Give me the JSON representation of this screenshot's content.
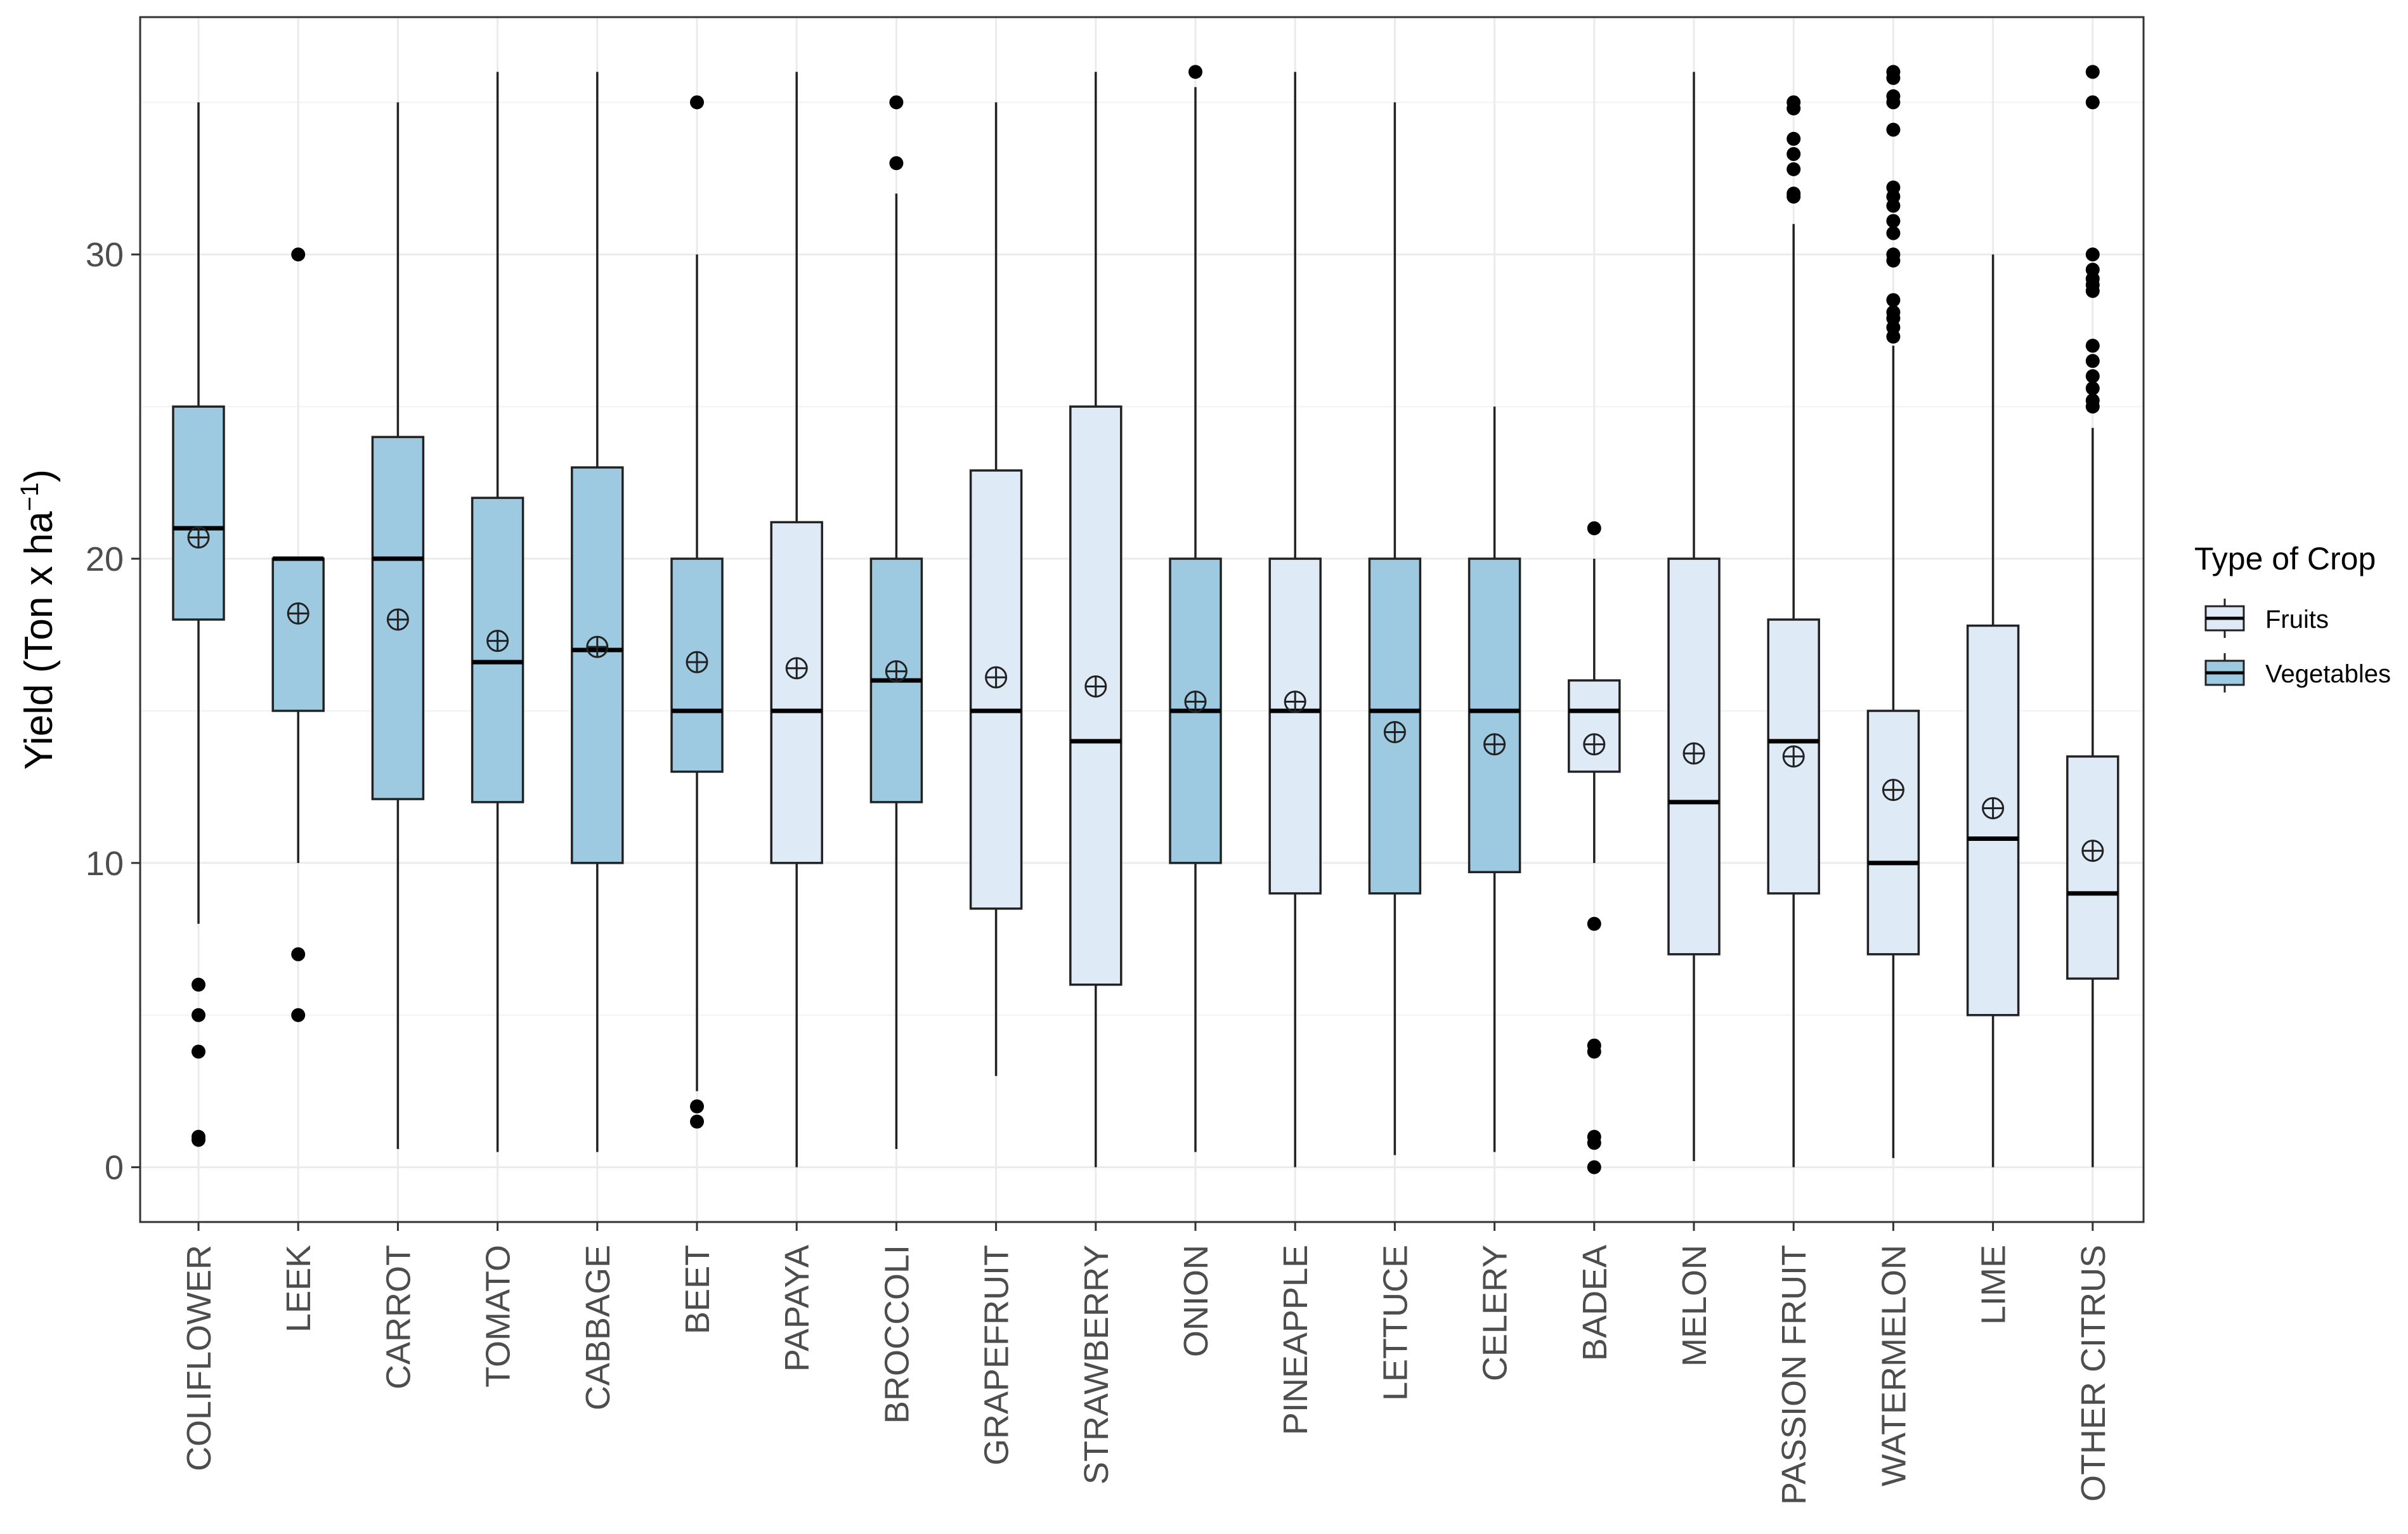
{
  "chart_data": {
    "type": "boxplot",
    "title": "",
    "xlabel": "",
    "ylabel_base": "Yield (Ton x ha",
    "ylabel_sup": "−1",
    "ylabel_close": ")",
    "ylim": [
      -1.8,
      37.8
    ],
    "yticks": [
      "0",
      "10",
      "20",
      "30"
    ],
    "ytick_values": [
      0,
      10,
      20,
      30
    ],
    "grid": true,
    "legend": {
      "title": "Type of Crop",
      "position": "right",
      "entries": [
        {
          "label": "Fruits",
          "color": "#deebf7"
        },
        {
          "label": "Vegetables",
          "color": "#9ecae1"
        }
      ]
    },
    "colors": {
      "Fruits": "#deebf7",
      "Vegetables": "#9ecae1"
    },
    "categories": [
      "COLIFLOWER",
      "LEEK",
      "CARROT",
      "TOMATO",
      "CABBAGE",
      "BEET",
      "PAPAYA",
      "BROCCOLI",
      "GRAPEFRUIT",
      "STRAWBERRY",
      "ONION",
      "PINEAPPLE",
      "LETTUCE",
      "CELERY",
      "BADEA",
      "MELON",
      "PASSION FRUIT",
      "WATERMELON",
      "LIME",
      "OTHER CITRUS"
    ],
    "boxes": [
      {
        "type": "Vegetables",
        "low": 8,
        "q1": 18,
        "median": 21,
        "q3": 25,
        "high": 35,
        "mean": 20.7,
        "outliers": [
          6,
          5,
          3.8,
          1,
          0.9
        ]
      },
      {
        "type": "Vegetables",
        "low": 10,
        "q1": 15,
        "median": 20,
        "q3": 20,
        "high": 20,
        "mean": 18.2,
        "outliers": [
          30,
          7,
          5
        ]
      },
      {
        "type": "Vegetables",
        "low": 0.6,
        "q1": 12.1,
        "median": 20,
        "q3": 24,
        "high": 35,
        "mean": 18,
        "outliers": []
      },
      {
        "type": "Vegetables",
        "low": 0.5,
        "q1": 12,
        "median": 16.6,
        "q3": 22,
        "high": 36,
        "mean": 17.3,
        "outliers": []
      },
      {
        "type": "Vegetables",
        "low": 0.5,
        "q1": 10,
        "median": 17,
        "q3": 23,
        "high": 36,
        "mean": 17.1,
        "outliers": []
      },
      {
        "type": "Vegetables",
        "low": 2.5,
        "q1": 13,
        "median": 15,
        "q3": 20,
        "high": 30,
        "mean": 16.6,
        "outliers": [
          35,
          2,
          1.5
        ]
      },
      {
        "type": "Fruits",
        "low": 0,
        "q1": 10,
        "median": 15,
        "q3": 21.2,
        "high": 36,
        "mean": 16.4,
        "outliers": []
      },
      {
        "type": "Vegetables",
        "low": 0.6,
        "q1": 12,
        "median": 16,
        "q3": 20,
        "high": 32,
        "mean": 16.3,
        "outliers": [
          35,
          33
        ]
      },
      {
        "type": "Fruits",
        "low": 3,
        "q1": 8.5,
        "median": 15,
        "q3": 22.9,
        "high": 35,
        "mean": 16.1,
        "outliers": []
      },
      {
        "type": "Fruits",
        "low": 0,
        "q1": 6,
        "median": 14,
        "q3": 25,
        "high": 36,
        "mean": 15.8,
        "outliers": []
      },
      {
        "type": "Vegetables",
        "low": 0.5,
        "q1": 10,
        "median": 15,
        "q3": 20,
        "high": 35.5,
        "mean": 15.3,
        "outliers": [
          36
        ]
      },
      {
        "type": "Fruits",
        "low": 0,
        "q1": 9,
        "median": 15,
        "q3": 20,
        "high": 36,
        "mean": 15.3,
        "outliers": []
      },
      {
        "type": "Vegetables",
        "low": 0.4,
        "q1": 9,
        "median": 15,
        "q3": 20,
        "high": 35,
        "mean": 14.3,
        "outliers": []
      },
      {
        "type": "Vegetables",
        "low": 0.5,
        "q1": 9.7,
        "median": 15,
        "q3": 20,
        "high": 25,
        "mean": 13.9,
        "outliers": []
      },
      {
        "type": "Fruits",
        "low": 10,
        "q1": 13,
        "median": 15,
        "q3": 16,
        "high": 20,
        "mean": 13.9,
        "outliers": [
          21,
          8,
          4,
          3.8,
          1,
          0.8,
          0
        ]
      },
      {
        "type": "Fruits",
        "low": 0.2,
        "q1": 7,
        "median": 12,
        "q3": 20,
        "high": 36,
        "mean": 13.6,
        "outliers": []
      },
      {
        "type": "Fruits",
        "low": 0,
        "q1": 9,
        "median": 14,
        "q3": 18,
        "high": 31,
        "mean": 13.5,
        "outliers": [
          35,
          34.8,
          33.8,
          33.3,
          32.8,
          32,
          31.9
        ]
      },
      {
        "type": "Fruits",
        "low": 0.3,
        "q1": 7,
        "median": 10,
        "q3": 15,
        "high": 27,
        "mean": 12.4,
        "outliers": [
          36,
          35.8,
          35.2,
          35,
          34.1,
          32.2,
          31.9,
          31.6,
          31.1,
          30.7,
          30,
          29.8,
          28.5,
          28.1,
          27.9,
          27.6,
          27.3
        ]
      },
      {
        "type": "Fruits",
        "low": 0,
        "q1": 5,
        "median": 10.8,
        "q3": 17.8,
        "high": 30,
        "mean": 11.8,
        "outliers": []
      },
      {
        "type": "Fruits",
        "low": 0,
        "q1": 6.2,
        "median": 9,
        "q3": 13.5,
        "high": 24.3,
        "mean": 10.4,
        "outliers": [
          36,
          35,
          30,
          29.5,
          29.2,
          29,
          28.8,
          27,
          26.5,
          26,
          25.6,
          25.2,
          25
        ]
      }
    ]
  }
}
